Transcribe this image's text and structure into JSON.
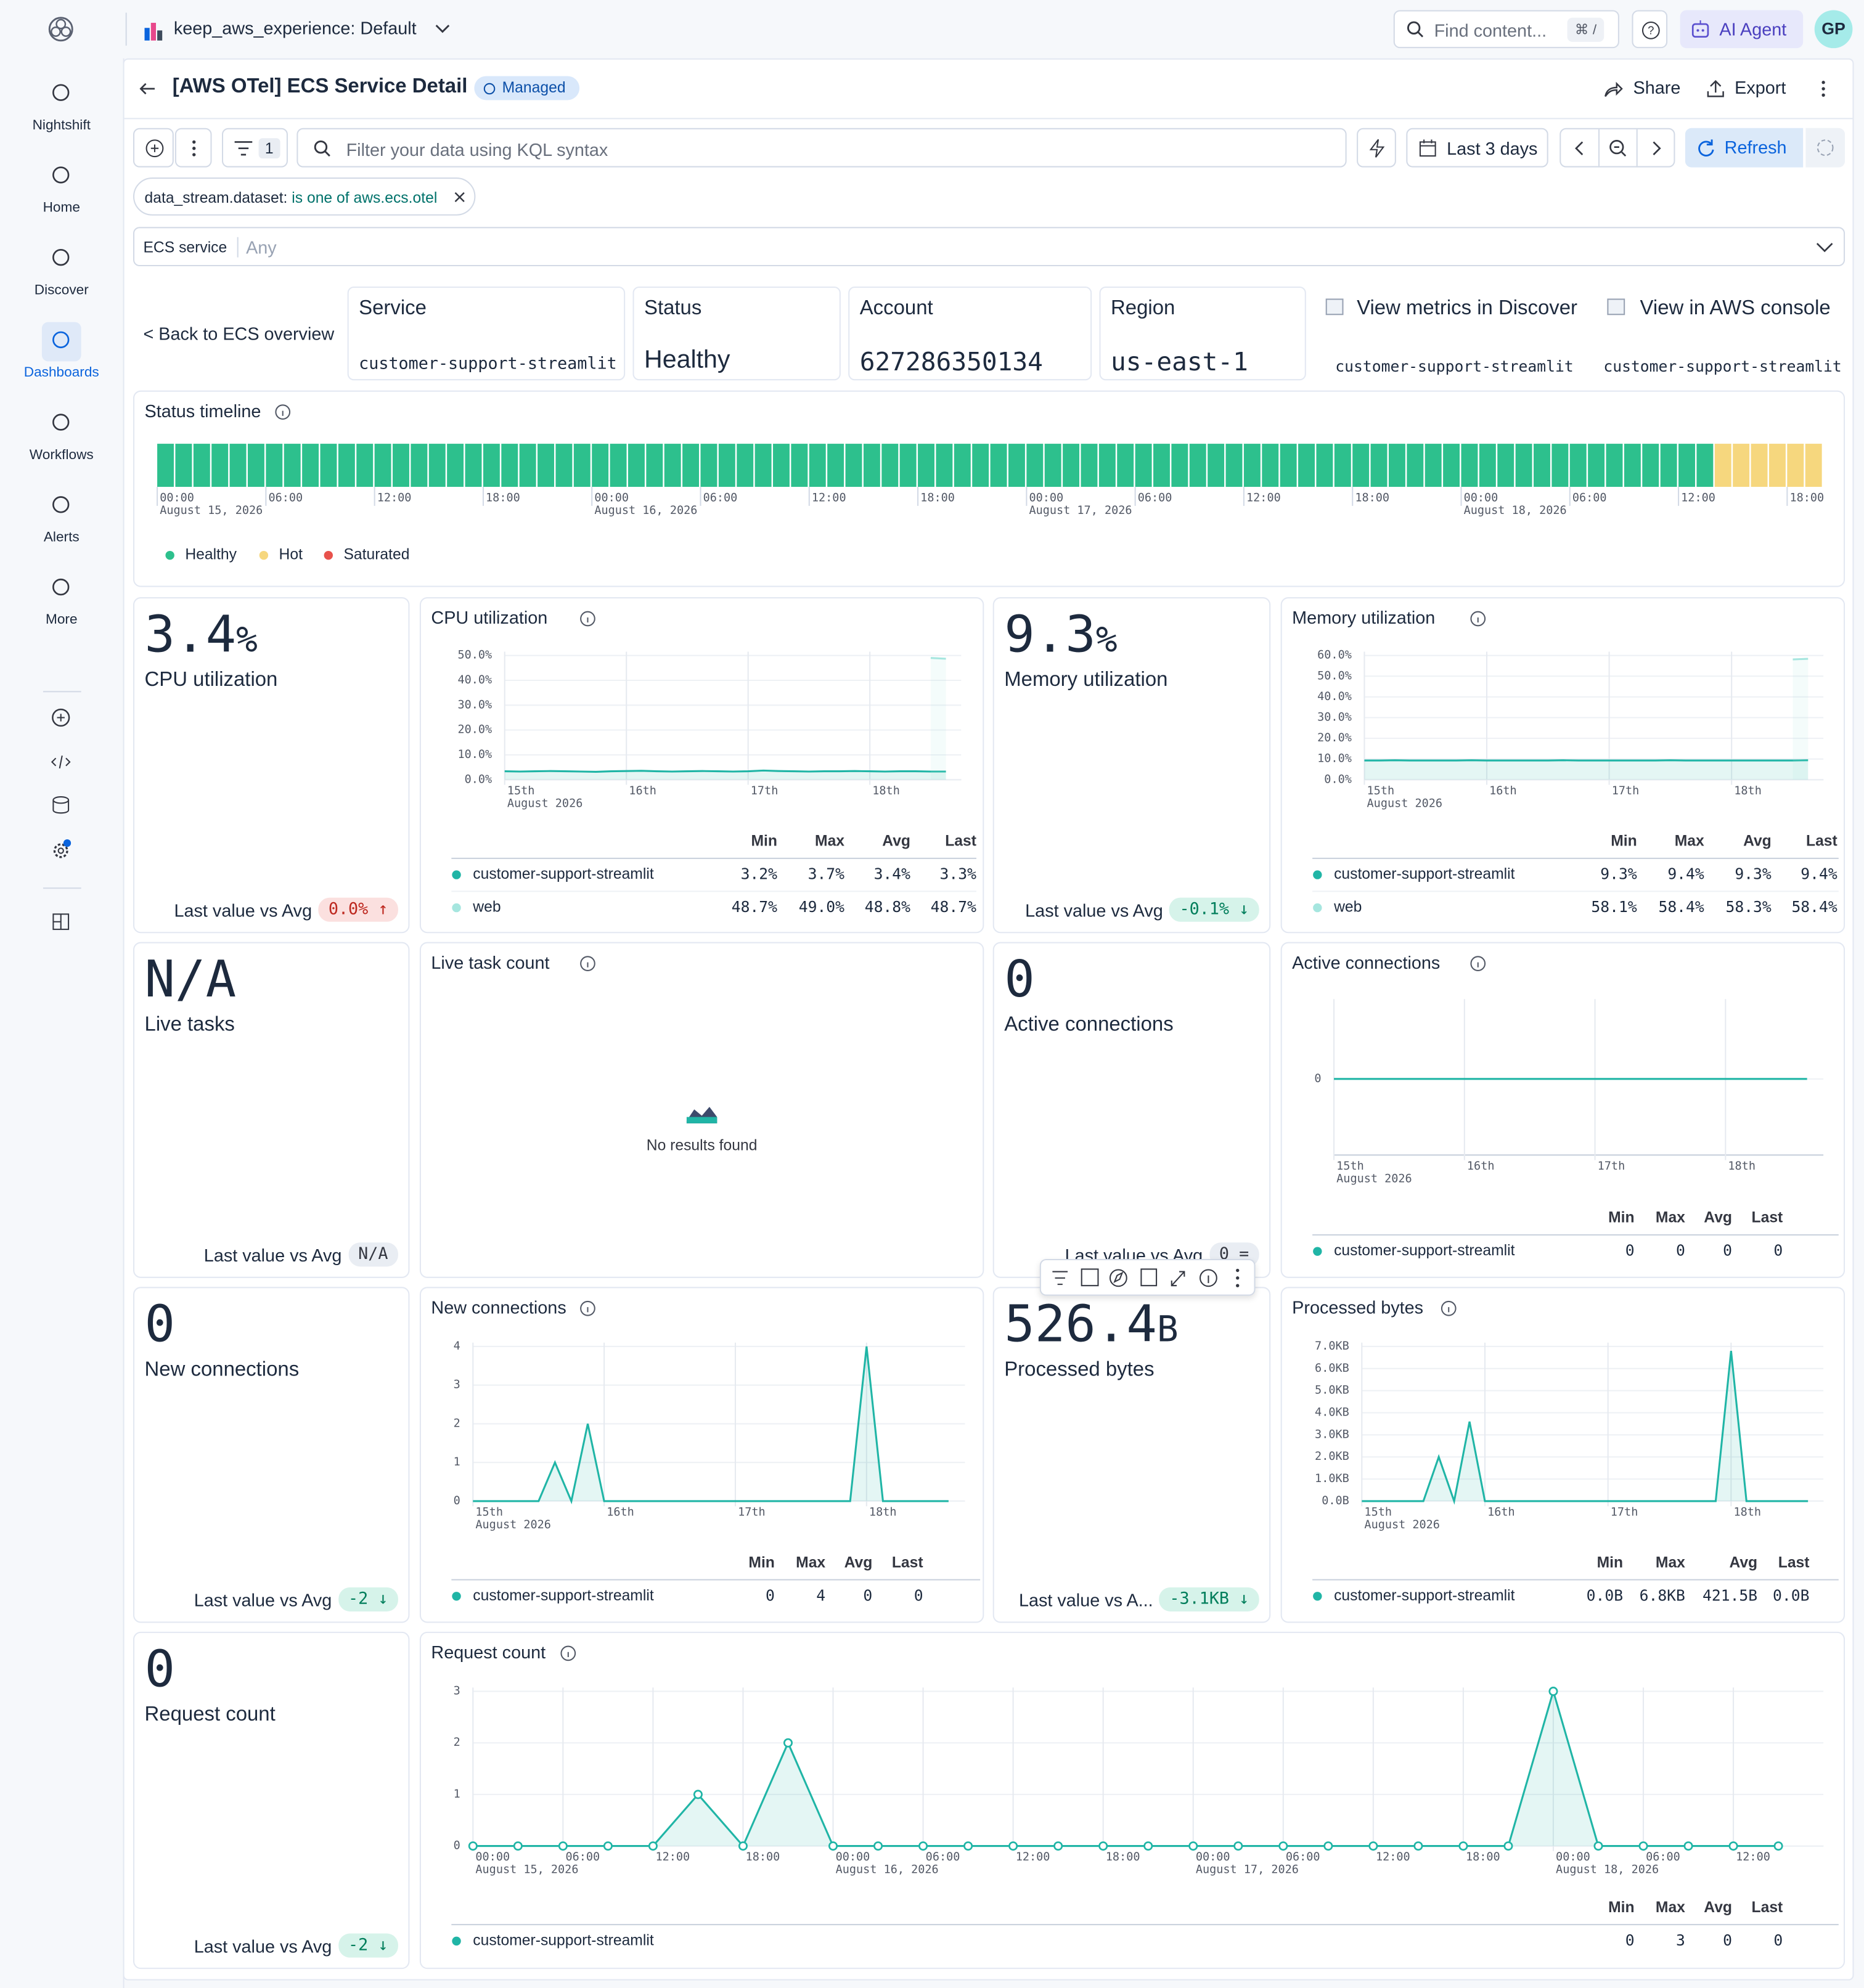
{
  "sidebar": {
    "items": [
      "Nightshift",
      "Home",
      "Discover",
      "Dashboards",
      "Workflows",
      "Alerts",
      "More"
    ]
  },
  "topbar": {
    "space": "keep_aws_experience: Default",
    "search": "Find content...",
    "shortcut": "⌘ /",
    "agent": "AI Agent",
    "avatar": "GP"
  },
  "header": {
    "title": "[AWS OTel] ECS Service Detail",
    "badge": "Managed",
    "share": "Share",
    "export": "Export"
  },
  "query": {
    "filters": 1,
    "placeholder": "Filter your data using KQL syntax",
    "time": "Last 3 days",
    "refresh": "Refresh"
  },
  "filter_pill": {
    "field": "data_stream.dataset:",
    "value": "is one of aws.ecs.otel"
  },
  "control": {
    "label": "ECS service",
    "value": "Any"
  },
  "info": {
    "back": "< Back to ECS overview",
    "cards": [
      {
        "label": "Service",
        "value": "customer-support-streamlit"
      },
      {
        "label": "Status",
        "value": "Healthy"
      },
      {
        "label": "Account",
        "value": "627286350134"
      },
      {
        "label": "Region",
        "value": "us-east-1"
      }
    ],
    "links": [
      {
        "label": "View metrics in Discover",
        "sub": "customer-support-streamlit"
      },
      {
        "label": "View in AWS console",
        "sub": "customer-support-streamlit"
      }
    ]
  },
  "status_timeline": {
    "title": "Status timeline",
    "runs": [
      {
        "status": "Healthy",
        "buckets": 86
      },
      {
        "status": "Hot",
        "buckets": 6
      }
    ],
    "xticks": [
      {
        "value": 0,
        "label": "00:00"
      },
      {
        "value": 6,
        "label": "06:00"
      },
      {
        "value": 12,
        "label": "12:00"
      },
      {
        "value": 18,
        "label": "18:00"
      },
      {
        "value": 24,
        "label": "00:00"
      },
      {
        "value": 30,
        "label": "06:00"
      },
      {
        "value": 36,
        "label": "12:00"
      },
      {
        "value": 42,
        "label": "18:00"
      },
      {
        "value": 48,
        "label": "00:00"
      },
      {
        "value": 54,
        "label": "06:00"
      },
      {
        "value": 60,
        "label": "12:00"
      },
      {
        "value": 66,
        "label": "18:00"
      },
      {
        "value": 72,
        "label": "00:00"
      },
      {
        "value": 78,
        "label": "06:00"
      },
      {
        "value": 84,
        "label": "12:00"
      },
      {
        "value": 90,
        "label": "18:00"
      }
    ],
    "xtick_dates": [
      {
        "value": 0,
        "label": "August 15, 2026"
      },
      {
        "value": 24,
        "label": "August 16, 2026"
      },
      {
        "value": 48,
        "label": "August 17, 2026"
      },
      {
        "value": 72,
        "label": "August 18, 2026"
      }
    ],
    "legend": [
      {
        "name": "Healthy",
        "color": "#2dc08d"
      },
      {
        "name": "Hot",
        "color": "#f6d77e"
      },
      {
        "name": "Saturated",
        "color": "#e8524c"
      }
    ]
  },
  "metrics": [
    {
      "value": 3.4,
      "unit": "%",
      "label": "CPU utilization",
      "compare_label": "Last value vs Avg",
      "compare": "0.0% ↑",
      "tone": "danger"
    },
    {
      "value": 9.3,
      "unit": "%",
      "label": "Memory utilization",
      "compare_label": "Last value vs Avg",
      "compare": "-0.1% ↓",
      "tone": "success"
    },
    {
      "value": "N/A",
      "label": "Live tasks",
      "compare_label": "Last value vs Avg",
      "compare": "N/A",
      "tone": "neutral"
    },
    {
      "value": 0,
      "label": "Active connections",
      "compare_label": "Last value vs Avg",
      "compare": "0 =",
      "tone": "neutral"
    },
    {
      "value": 0,
      "label": "New connections",
      "compare_label": "Last value vs Avg",
      "compare": "-2 ↓",
      "tone": "success"
    },
    {
      "value": 526.4,
      "unit": "B",
      "label": "Processed bytes",
      "compare_label": "Last value vs A...",
      "compare": "-3.1KB ↓",
      "tone": "success"
    },
    {
      "value": 0,
      "label": "Request count",
      "compare_label": "Last value vs Avg",
      "compare": "-2 ↓",
      "tone": "success"
    }
  ],
  "charts": [
    {
      "type": "line",
      "title": "CPU utilization",
      "ylim": [
        0,
        50
      ],
      "yticks": [
        {
          "value": 0,
          "label": "0.0%"
        },
        {
          "value": 10,
          "label": "10.0%"
        },
        {
          "value": 20,
          "label": "20.0%"
        },
        {
          "value": 30,
          "label": "30.0%"
        },
        {
          "value": 40,
          "label": "40.0%"
        },
        {
          "value": 50,
          "label": "50.0%"
        }
      ],
      "xticks": [
        {
          "value": 0,
          "label": "15th"
        },
        {
          "value": 8,
          "label": "16th"
        },
        {
          "value": 16,
          "label": "17th"
        },
        {
          "value": 24,
          "label": "18th"
        }
      ],
      "xtick_dates": [
        {
          "value": 0,
          "label": "August 2026"
        }
      ],
      "markers": false,
      "columns": [
        "Min",
        "Max",
        "Avg",
        "Last"
      ],
      "series": [
        {
          "name": "customer-support-streamlit",
          "color": "#20b5a6",
          "values": [
            3.4,
            3.3,
            3.4,
            3.5,
            3.4,
            3.3,
            3.2,
            3.4,
            3.5,
            3.6,
            3.4,
            3.3,
            3.4,
            3.5,
            3.4,
            3.3,
            3.4,
            3.7,
            3.5,
            3.4,
            3.3,
            3.4,
            3.4,
            3.5,
            3.4,
            3.3,
            3.4,
            3.4,
            3.3,
            3.3
          ],
          "stats": [
            "3.2%",
            "3.7%",
            "3.4%",
            "3.3%"
          ]
        },
        {
          "name": "web",
          "color": "#a6e6df",
          "values": [
            null,
            null,
            null,
            null,
            null,
            null,
            null,
            null,
            null,
            null,
            null,
            null,
            null,
            null,
            null,
            null,
            null,
            null,
            null,
            null,
            null,
            null,
            null,
            null,
            null,
            null,
            null,
            null,
            49.0,
            48.7
          ],
          "stats": [
            "48.7%",
            "49.0%",
            "48.8%",
            "48.7%"
          ]
        }
      ]
    },
    {
      "type": "line",
      "title": "Memory utilization",
      "ylim": [
        0,
        60
      ],
      "yticks": [
        {
          "value": 0,
          "label": "0.0%"
        },
        {
          "value": 10,
          "label": "10.0%"
        },
        {
          "value": 20,
          "label": "20.0%"
        },
        {
          "value": 30,
          "label": "30.0%"
        },
        {
          "value": 40,
          "label": "40.0%"
        },
        {
          "value": 50,
          "label": "50.0%"
        },
        {
          "value": 60,
          "label": "60.0%"
        }
      ],
      "xticks": [
        {
          "value": 0,
          "label": "15th"
        },
        {
          "value": 8,
          "label": "16th"
        },
        {
          "value": 16,
          "label": "17th"
        },
        {
          "value": 24,
          "label": "18th"
        }
      ],
      "xtick_dates": [
        {
          "value": 0,
          "label": "August 2026"
        }
      ],
      "markers": false,
      "columns": [
        "Min",
        "Max",
        "Avg",
        "Last"
      ],
      "series": [
        {
          "name": "customer-support-streamlit",
          "color": "#20b5a6",
          "values": [
            9.3,
            9.3,
            9.4,
            9.3,
            9.3,
            9.3,
            9.3,
            9.4,
            9.3,
            9.3,
            9.3,
            9.3,
            9.3,
            9.4,
            9.3,
            9.3,
            9.3,
            9.3,
            9.3,
            9.3,
            9.4,
            9.3,
            9.3,
            9.3,
            9.3,
            9.3,
            9.3,
            9.3,
            9.3,
            9.4
          ],
          "stats": [
            "9.3%",
            "9.4%",
            "9.3%",
            "9.4%"
          ]
        },
        {
          "name": "web",
          "color": "#a6e6df",
          "values": [
            null,
            null,
            null,
            null,
            null,
            null,
            null,
            null,
            null,
            null,
            null,
            null,
            null,
            null,
            null,
            null,
            null,
            null,
            null,
            null,
            null,
            null,
            null,
            null,
            null,
            null,
            null,
            null,
            58.1,
            58.4
          ],
          "stats": [
            "58.1%",
            "58.4%",
            "58.3%",
            "58.4%"
          ]
        }
      ]
    },
    {
      "type": "empty",
      "title": "Live task count",
      "message": "No results found"
    },
    {
      "type": "line",
      "title": "Active connections",
      "ylim": [
        -1,
        1
      ],
      "yticks": [
        0
      ],
      "xticks": [
        {
          "value": 0,
          "label": "15th"
        },
        {
          "value": 8,
          "label": "16th"
        },
        {
          "value": 16,
          "label": "17th"
        },
        {
          "value": 24,
          "label": "18th"
        }
      ],
      "xtick_dates": [
        {
          "value": 0,
          "label": "August 2026"
        }
      ],
      "markers": false,
      "columns": [
        "Min",
        "Max",
        "Avg",
        "Last"
      ],
      "series": [
        {
          "name": "customer-support-streamlit",
          "color": "#20b5a6",
          "values": [
            0,
            0,
            0,
            0,
            0,
            0,
            0,
            0,
            0,
            0,
            0,
            0,
            0,
            0,
            0,
            0,
            0,
            0,
            0,
            0,
            0,
            0,
            0,
            0,
            0,
            0,
            0,
            0,
            0,
            0
          ],
          "stats": [
            "0",
            "0",
            "0",
            "0"
          ]
        }
      ]
    },
    {
      "type": "line",
      "title": "New connections",
      "ylim": [
        0,
        4
      ],
      "yticks": [
        0,
        1,
        2,
        3,
        4
      ],
      "xticks": [
        {
          "value": 0,
          "label": "15th"
        },
        {
          "value": 8,
          "label": "16th"
        },
        {
          "value": 16,
          "label": "17th"
        },
        {
          "value": 24,
          "label": "18th"
        }
      ],
      "xtick_dates": [
        {
          "value": 0,
          "label": "August 2026"
        }
      ],
      "markers": false,
      "columns": [
        "Min",
        "Max",
        "Avg",
        "Last"
      ],
      "series": [
        {
          "name": "customer-support-streamlit",
          "color": "#20b5a6",
          "values": [
            0,
            0,
            0,
            0,
            0,
            1,
            0,
            2,
            0,
            0,
            0,
            0,
            0,
            0,
            0,
            0,
            0,
            0,
            0,
            0,
            0,
            0,
            0,
            0,
            4,
            0,
            0,
            0,
            0,
            0
          ],
          "stats": [
            "0",
            "4",
            "0",
            "0"
          ]
        }
      ]
    },
    {
      "type": "line",
      "title": "Processed bytes",
      "ylim": [
        0,
        7
      ],
      "yticks": [
        {
          "value": 0,
          "label": "0.0B"
        },
        {
          "value": 1,
          "label": "1.0KB"
        },
        {
          "value": 2,
          "label": "2.0KB"
        },
        {
          "value": 3,
          "label": "3.0KB"
        },
        {
          "value": 4,
          "label": "4.0KB"
        },
        {
          "value": 5,
          "label": "5.0KB"
        },
        {
          "value": 6,
          "label": "6.0KB"
        },
        {
          "value": 7,
          "label": "7.0KB"
        }
      ],
      "xticks": [
        {
          "value": 0,
          "label": "15th"
        },
        {
          "value": 8,
          "label": "16th"
        },
        {
          "value": 16,
          "label": "17th"
        },
        {
          "value": 24,
          "label": "18th"
        }
      ],
      "xtick_dates": [
        {
          "value": 0,
          "label": "August 2026"
        }
      ],
      "markers": false,
      "columns": [
        "Min",
        "Max",
        "Avg",
        "Last"
      ],
      "series": [
        {
          "name": "customer-support-streamlit",
          "color": "#20b5a6",
          "values": [
            0,
            0,
            0,
            0,
            0,
            2.0,
            0,
            3.6,
            0,
            0,
            0,
            0,
            0,
            0,
            0,
            0,
            0,
            0,
            0,
            0,
            0,
            0,
            0,
            0,
            6.8,
            0,
            0,
            0,
            0,
            0
          ],
          "stats": [
            "0.0B",
            "6.8KB",
            "421.5B",
            "0.0B"
          ]
        }
      ]
    },
    {
      "type": "line",
      "title": "Request count",
      "ylim": [
        0,
        3
      ],
      "yticks": [
        0,
        1,
        2,
        3
      ],
      "xticks": [
        {
          "value": 0,
          "label": "00:00"
        },
        {
          "value": 2,
          "label": "06:00"
        },
        {
          "value": 4,
          "label": "12:00"
        },
        {
          "value": 6,
          "label": "18:00"
        },
        {
          "value": 8,
          "label": "00:00"
        },
        {
          "value": 10,
          "label": "06:00"
        },
        {
          "value": 12,
          "label": "12:00"
        },
        {
          "value": 14,
          "label": "18:00"
        },
        {
          "value": 16,
          "label": "00:00"
        },
        {
          "value": 18,
          "label": "06:00"
        },
        {
          "value": 20,
          "label": "12:00"
        },
        {
          "value": 22,
          "label": "18:00"
        },
        {
          "value": 24,
          "label": "00:00"
        },
        {
          "value": 26,
          "label": "06:00"
        },
        {
          "value": 28,
          "label": "12:00"
        }
      ],
      "xtick_dates": [
        {
          "value": 0,
          "label": "August 15, 2026"
        },
        {
          "value": 8,
          "label": "August 16, 2026"
        },
        {
          "value": 16,
          "label": "August 17, 2026"
        },
        {
          "value": 24,
          "label": "August 18, 2026"
        }
      ],
      "markers": true,
      "columns": [
        "Min",
        "Max",
        "Avg",
        "Last"
      ],
      "series": [
        {
          "name": "customer-support-streamlit",
          "color": "#20b5a6",
          "values": [
            0,
            0,
            0,
            0,
            0,
            1,
            0,
            2,
            0,
            0,
            0,
            0,
            0,
            0,
            0,
            0,
            0,
            0,
            0,
            0,
            0,
            0,
            0,
            0,
            3,
            0,
            0,
            0,
            0,
            0
          ],
          "stats": [
            "0",
            "3",
            "0",
            "0"
          ]
        }
      ]
    }
  ]
}
